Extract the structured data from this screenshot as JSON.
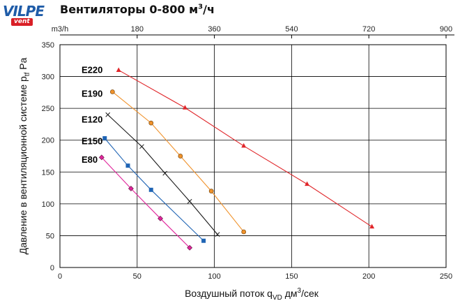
{
  "logo": {
    "main": "VILPE",
    "sub": "vent"
  },
  "header": {
    "title": "Вентиляторы 0-800 м",
    "title_sup": "3",
    "title_suffix": "/ч"
  },
  "chart_data": {
    "type": "line",
    "title": "Вентиляторы 0-800 м³/ч",
    "xlabel_parts": [
      "Воздушный поток  q",
      "VD",
      " дм",
      "3",
      "/сек"
    ],
    "ylabel_parts": [
      "Давление в вентиляционной системе  p",
      "tf",
      "  Pa"
    ],
    "xlim": [
      0,
      250
    ],
    "ylim": [
      0,
      350
    ],
    "xticks": [
      0,
      50,
      100,
      150,
      200,
      250
    ],
    "yticks": [
      0,
      50,
      100,
      150,
      200,
      250,
      300,
      350
    ],
    "top_axis": {
      "unit_label": "m3/h",
      "ticks": [
        "180",
        "360",
        "540",
        "720",
        "900"
      ],
      "values": [
        180,
        360,
        540,
        720,
        900
      ]
    },
    "grid": true,
    "series": [
      {
        "name": "E220",
        "color": "#e0262a",
        "marker": "triangle",
        "x": [
          38,
          81,
          119,
          160,
          202
        ],
        "y": [
          310,
          251,
          191,
          131,
          64
        ]
      },
      {
        "name": "E190",
        "color": "#f0922b",
        "marker": "circle",
        "x": [
          34,
          59,
          78,
          98,
          119
        ],
        "y": [
          276,
          227,
          175,
          120,
          56
        ]
      },
      {
        "name": "E120",
        "color": "#1a1a1a",
        "marker": "x",
        "x": [
          31,
          53,
          68,
          84,
          102
        ],
        "y": [
          240,
          190,
          148,
          104,
          52
        ]
      },
      {
        "name": "E150",
        "color": "#1f64b4",
        "marker": "square",
        "x": [
          29,
          44,
          59,
          93
        ],
        "y": [
          203,
          160,
          122,
          42
        ]
      },
      {
        "name": "E80",
        "color": "#e0259b",
        "marker": "diamond",
        "x": [
          27,
          46,
          65,
          84
        ],
        "y": [
          173,
          124,
          77,
          31
        ]
      }
    ],
    "series_label_pos": {
      "E220": [
        14,
        311
      ],
      "E190": [
        14,
        274
      ],
      "E120": [
        14,
        233
      ],
      "E150": [
        14,
        199
      ],
      "E80": [
        14,
        170
      ]
    }
  }
}
